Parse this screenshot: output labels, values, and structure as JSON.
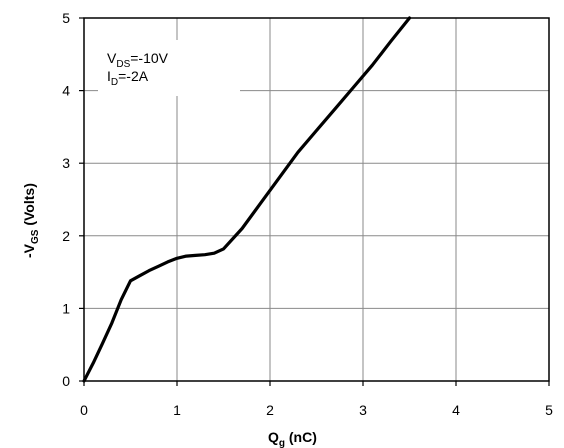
{
  "chart_data": {
    "type": "line",
    "xlabel": {
      "main": "Q",
      "sub": "g",
      "unit": " (nC)"
    },
    "ylabel": {
      "prefix": "-V",
      "sub": "GS",
      "unit": " (Volts)"
    },
    "xlim": [
      0,
      5
    ],
    "ylim": [
      0,
      5
    ],
    "xticks": [
      "0",
      "1",
      "2",
      "3",
      "4",
      "5"
    ],
    "yticks": [
      "0",
      "1",
      "2",
      "3",
      "4",
      "5"
    ],
    "grid": true,
    "conditions": [
      {
        "main": "V",
        "sub": "DS",
        "value": "=-10V"
      },
      {
        "main": "I",
        "sub": "D",
        "value": "=-2A"
      }
    ],
    "series": [
      {
        "x": [
          0,
          0.1,
          0.2,
          0.3,
          0.4,
          0.5,
          0.6,
          0.7,
          0.8,
          0.9,
          1.0,
          1.1,
          1.2,
          1.3,
          1.4,
          1.5,
          1.7,
          1.9,
          2.1,
          2.3,
          2.5,
          2.7,
          2.9,
          3.1,
          3.3,
          3.5
        ],
        "y": [
          0,
          0.25,
          0.52,
          0.8,
          1.12,
          1.38,
          1.45,
          1.52,
          1.58,
          1.64,
          1.69,
          1.72,
          1.73,
          1.74,
          1.76,
          1.82,
          2.1,
          2.45,
          2.8,
          3.15,
          3.45,
          3.75,
          4.05,
          4.35,
          4.68,
          5.0
        ]
      }
    ]
  }
}
